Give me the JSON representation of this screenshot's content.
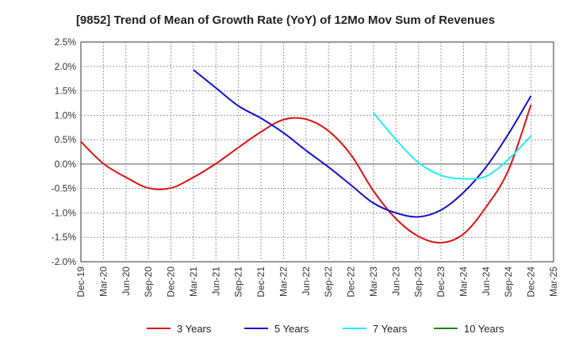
{
  "chart_data": {
    "type": "line",
    "title": "[9852]  Trend of Mean of Growth Rate (YoY) of 12Mo Mov Sum of Revenues",
    "xlabel": "",
    "ylabel": "",
    "ylim": [
      -0.02,
      0.025
    ],
    "y_ticks": [
      {
        "value": 0.025,
        "label": "2.5%"
      },
      {
        "value": 0.02,
        "label": "2.0%"
      },
      {
        "value": 0.015,
        "label": "1.5%"
      },
      {
        "value": 0.01,
        "label": "1.0%"
      },
      {
        "value": 0.005,
        "label": "0.5%"
      },
      {
        "value": 0.0,
        "label": "0.0%"
      },
      {
        "value": -0.005,
        "label": "-0.5%"
      },
      {
        "value": -0.01,
        "label": "-1.0%"
      },
      {
        "value": -0.015,
        "label": "-1.5%"
      },
      {
        "value": -0.02,
        "label": "-2.0%"
      }
    ],
    "categories": [
      "Dec-19",
      "Mar-20",
      "Jun-20",
      "Sep-20",
      "Dec-20",
      "Mar-21",
      "Jun-21",
      "Sep-21",
      "Dec-21",
      "Mar-22",
      "Jun-22",
      "Sep-22",
      "Dec-22",
      "Mar-23",
      "Jun-23",
      "Sep-23",
      "Dec-23",
      "Mar-24",
      "Jun-24",
      "Sep-24",
      "Dec-24",
      "Mar-25"
    ],
    "grid": true,
    "legend_position": "bottom",
    "series": [
      {
        "name": "3 Years",
        "color": "#dd1111",
        "values": [
          0.0046,
          0.0001,
          -0.0027,
          -0.0049,
          -0.0049,
          -0.0027,
          0.0001,
          0.0034,
          0.0066,
          0.0091,
          0.0092,
          0.0068,
          0.0019,
          -0.0055,
          -0.0112,
          -0.0148,
          -0.0161,
          -0.0143,
          -0.0088,
          -0.0012,
          0.0122,
          null
        ]
      },
      {
        "name": "5 Years",
        "color": "#1111cc",
        "values": [
          null,
          null,
          null,
          null,
          null,
          0.0193,
          0.0156,
          0.0119,
          0.0094,
          0.0064,
          0.0028,
          -0.0006,
          -0.0043,
          -0.008,
          -0.01,
          -0.0108,
          -0.0094,
          -0.0058,
          -0.0006,
          0.0062,
          0.014,
          null
        ]
      },
      {
        "name": "7 Years",
        "color": "#22eeee",
        "values": [
          null,
          null,
          null,
          null,
          null,
          null,
          null,
          null,
          null,
          null,
          null,
          null,
          null,
          0.0105,
          0.005,
          0.0003,
          -0.0023,
          -0.003,
          -0.0025,
          0.001,
          0.0058,
          null
        ]
      },
      {
        "name": "10 Years",
        "color": "#118811",
        "values": [
          null,
          null,
          null,
          null,
          null,
          null,
          null,
          null,
          null,
          null,
          null,
          null,
          null,
          null,
          null,
          null,
          null,
          null,
          null,
          null,
          null,
          null
        ]
      }
    ]
  }
}
